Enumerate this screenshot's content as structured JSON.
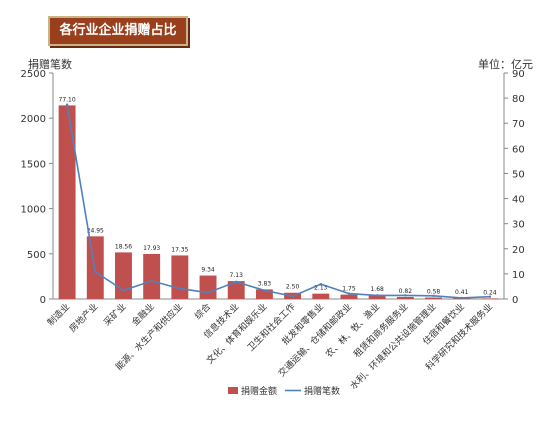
{
  "header": {
    "title": "各行业企业捐赠占比"
  },
  "chart_data": {
    "type": "bar",
    "categories": [
      "制造业",
      "房地产业",
      "采矿业",
      "金融业",
      "能源、水生产和供应业",
      "综合",
      "信息技术业",
      "文化、体育和娱乐业",
      "卫生和社会工作",
      "批发和零售业",
      "交通运输、仓储和邮政业",
      "农、林、牧、渔业",
      "租赁和商务服务业",
      "水利、环境和公共设施管理业",
      "住宿和餐饮业",
      "科学研究和技术服务业"
    ],
    "series": [
      {
        "name": "捐赠金额",
        "type": "bar",
        "axis": "right",
        "color": "#c0504d",
        "values": [
          77.1,
          24.95,
          18.56,
          17.93,
          17.35,
          9.34,
          7.13,
          3.83,
          2.5,
          2.13,
          1.75,
          1.68,
          0.82,
          0.58,
          0.41,
          0.24
        ]
      },
      {
        "name": "捐赠笔数",
        "type": "line",
        "axis": "left",
        "color": "#4f81bd",
        "values": [
          2150,
          300,
          95,
          200,
          115,
          70,
          190,
          95,
          30,
          165,
          60,
          40,
          40,
          35,
          12,
          25
        ]
      }
    ],
    "ylabel_left": "捐赠笔数",
    "ylabel_right": "单位：亿元",
    "ylim_left": [
      0,
      2500
    ],
    "ylim_right": [
      0,
      90
    ],
    "yticks_left": [
      0,
      500,
      1000,
      1500,
      2000,
      2500
    ],
    "yticks_right": [
      0,
      10,
      20,
      30,
      40,
      50,
      60,
      70,
      80,
      90
    ],
    "legend_position": "bottom",
    "grid": false
  }
}
